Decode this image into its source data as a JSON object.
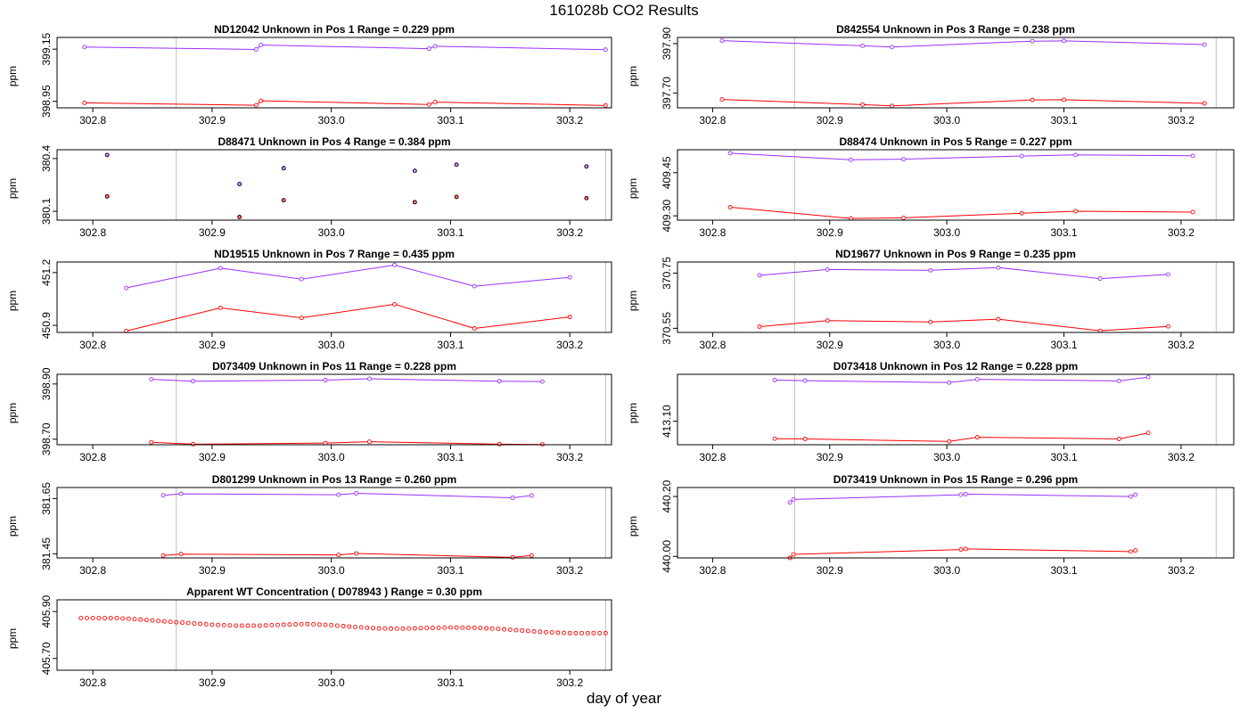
{
  "figure": {
    "title": "161028b  CO2 Results",
    "xlabel": "day of year"
  },
  "colors": {
    "upper": "#9b30ff",
    "lower": "#ff0000",
    "frame": "#000000",
    "vline": "#bebebe"
  },
  "chart_data": [
    {
      "type": "line",
      "panel_id": "pos1",
      "title": "ND12042    Unknown in Pos 1         Range =  0.229 ppm",
      "ylabel": "ppm",
      "xlim": [
        302.77,
        303.235
      ],
      "ylim": [
        398.925,
        399.195
      ],
      "xticks": [
        "302.8",
        "302.9",
        "303.0",
        "303.1",
        "303.2"
      ],
      "yticks": [
        "398.95",
        "399.15"
      ],
      "vlines": [
        302.87,
        303.235
      ],
      "series": [
        {
          "name": "upper",
          "x": [
            302.793,
            302.937,
            302.941,
            303.082,
            303.087,
            303.23
          ],
          "y": [
            399.158,
            399.149,
            399.166,
            399.152,
            399.161,
            399.148
          ]
        },
        {
          "name": "lower",
          "x": [
            302.793,
            302.937,
            302.941,
            303.082,
            303.087,
            303.23
          ],
          "y": [
            398.944,
            398.935,
            398.952,
            398.938,
            398.947,
            398.934
          ]
        }
      ]
    },
    {
      "type": "line",
      "panel_id": "pos3",
      "title": "D842554    Unknown in Pos 3         Range =  0.238 ppm",
      "ylabel": "ppm",
      "xlim": [
        302.77,
        303.245
      ],
      "ylim": [
        397.64,
        397.925
      ],
      "xticks": [
        "302.8",
        "302.9",
        "303.0",
        "303.1",
        "303.2"
      ],
      "yticks": [
        "397.70",
        "397.90"
      ],
      "vlines": [
        302.87,
        303.23
      ],
      "series": [
        {
          "name": "upper",
          "x": [
            302.808,
            302.928,
            302.953,
            303.073,
            303.1,
            303.22
          ],
          "y": [
            397.912,
            397.891,
            397.886,
            397.91,
            397.911,
            397.896
          ]
        },
        {
          "name": "lower",
          "x": [
            302.808,
            302.928,
            302.953,
            303.073,
            303.1,
            303.22
          ],
          "y": [
            397.674,
            397.653,
            397.648,
            397.672,
            397.673,
            397.658
          ]
        }
      ]
    },
    {
      "type": "scatter",
      "panel_id": "pos4",
      "title": "D88471    Unknown in Pos 4         Range =  0.384 ppm",
      "ylabel": "ppm",
      "xlim": [
        302.77,
        303.235
      ],
      "ylim": [
        380.05,
        380.45
      ],
      "xticks": [
        "302.8",
        "302.9",
        "303.0",
        "303.1",
        "303.2"
      ],
      "yticks": [
        "380.1",
        "380.4"
      ],
      "vlines": [
        302.87,
        303.23
      ],
      "series": [
        {
          "name": "upper",
          "x": [
            302.812,
            302.923,
            302.96,
            303.07,
            303.105,
            303.214
          ],
          "y": [
            380.42,
            380.255,
            380.345,
            380.33,
            380.365,
            380.355
          ]
        },
        {
          "name": "lower",
          "x": [
            302.812,
            302.923,
            302.96,
            303.07,
            303.105,
            303.214
          ],
          "y": [
            380.185,
            380.068,
            380.163,
            380.152,
            380.182,
            380.175
          ]
        }
      ]
    },
    {
      "type": "line",
      "panel_id": "pos5",
      "title": "D88474    Unknown in Pos 5         Range =  0.227 ppm",
      "ylabel": "ppm",
      "xlim": [
        302.77,
        303.245
      ],
      "ylim": [
        409.285,
        409.53
      ],
      "xticks": [
        "302.8",
        "302.9",
        "303.0",
        "303.1",
        "303.2"
      ],
      "yticks": [
        "409.30",
        "409.45"
      ],
      "vlines": [
        302.87,
        303.23
      ],
      "series": [
        {
          "name": "upper",
          "x": [
            302.815,
            302.918,
            302.963,
            303.064,
            303.11,
            303.21
          ],
          "y": [
            409.518,
            409.495,
            409.497,
            409.508,
            409.512,
            409.509
          ]
        },
        {
          "name": "lower",
          "x": [
            302.815,
            302.918,
            302.963,
            303.064,
            303.11,
            303.21
          ],
          "y": [
            409.33,
            409.291,
            409.293,
            409.309,
            409.316,
            409.313
          ]
        }
      ]
    },
    {
      "type": "line",
      "panel_id": "pos7",
      "title": "ND19515    Unknown in Pos 7         Range =  0.435 ppm",
      "ylabel": "ppm",
      "xlim": [
        302.77,
        303.235
      ],
      "ylim": [
        450.86,
        451.26
      ],
      "xticks": [
        "302.8",
        "302.9",
        "303.0",
        "303.1",
        "303.2"
      ],
      "yticks": [
        "450.9",
        "451.2"
      ],
      "vlines": [
        302.87,
        303.23
      ],
      "series": [
        {
          "name": "upper",
          "x": [
            302.828,
            302.907,
            302.975,
            303.053,
            303.12,
            303.2
          ],
          "y": [
            451.113,
            451.225,
            451.163,
            451.243,
            451.123,
            451.173
          ]
        },
        {
          "name": "lower",
          "x": [
            302.828,
            302.907,
            302.975,
            303.053,
            303.12,
            303.2
          ],
          "y": [
            450.868,
            451.0,
            450.943,
            451.02,
            450.883,
            450.948
          ]
        }
      ]
    },
    {
      "type": "line",
      "panel_id": "pos9",
      "title": "ND19677    Unknown in Pos 9         Range =  0.235 ppm",
      "ylabel": "ppm",
      "xlim": [
        302.77,
        303.245
      ],
      "ylim": [
        370.535,
        370.79
      ],
      "xticks": [
        "302.8",
        "302.9",
        "303.0",
        "303.1",
        "303.2"
      ],
      "yticks": [
        "370.55",
        "370.75"
      ],
      "vlines": [
        302.87,
        303.23
      ],
      "series": [
        {
          "name": "upper",
          "x": [
            302.84,
            302.898,
            302.986,
            303.044,
            303.131,
            303.189
          ],
          "y": [
            370.742,
            370.763,
            370.76,
            370.77,
            370.73,
            370.745
          ]
        },
        {
          "name": "lower",
          "x": [
            302.84,
            302.898,
            302.986,
            303.044,
            303.131,
            303.189
          ],
          "y": [
            370.556,
            370.578,
            370.573,
            370.583,
            370.541,
            370.557
          ]
        }
      ]
    },
    {
      "type": "line",
      "panel_id": "pos11",
      "title": "D073409    Unknown in Pos 11         Range =  0.228 ppm",
      "ylabel": "ppm",
      "xlim": [
        302.77,
        303.235
      ],
      "ylim": [
        398.68,
        398.935
      ],
      "xticks": [
        "302.8",
        "302.9",
        "303.0",
        "303.1",
        "303.2"
      ],
      "yticks": [
        "398.70",
        "398.90"
      ],
      "vlines": [
        302.87,
        303.23
      ],
      "series": [
        {
          "name": "upper",
          "x": [
            302.849,
            302.884,
            302.995,
            303.032,
            303.141,
            303.177
          ],
          "y": [
            398.917,
            398.91,
            398.914,
            398.919,
            398.91,
            398.909
          ]
        },
        {
          "name": "lower",
          "x": [
            302.849,
            302.884,
            302.995,
            303.032,
            303.141,
            303.177
          ],
          "y": [
            398.689,
            398.682,
            398.686,
            398.691,
            398.682,
            398.681
          ]
        }
      ]
    },
    {
      "type": "line",
      "panel_id": "pos12",
      "title": "D073418    Unknown in Pos 12         Range =  0.228 ppm",
      "ylabel": "ppm",
      "xlim": [
        302.77,
        303.245
      ],
      "ylim": [
        413.015,
        413.27
      ],
      "xticks": [
        "302.8",
        "302.9",
        "303.0",
        "303.1",
        "303.2"
      ],
      "yticks": [
        "413.10"
      ],
      "vlines": [
        302.87,
        303.23
      ],
      "series": [
        {
          "name": "upper",
          "x": [
            302.853,
            302.879,
            303.002,
            303.026,
            303.147,
            303.172
          ],
          "y": [
            413.249,
            413.247,
            413.24,
            413.252,
            413.246,
            413.26
          ]
        },
        {
          "name": "lower",
          "x": [
            302.853,
            302.879,
            303.002,
            303.026,
            303.147,
            303.172
          ],
          "y": [
            413.037,
            413.036,
            413.027,
            413.042,
            413.036,
            413.058
          ]
        }
      ]
    },
    {
      "type": "line",
      "panel_id": "pos13",
      "title": "D801299    Unknown in Pos 13         Range =  0.260 ppm",
      "ylabel": "ppm",
      "xlim": [
        302.77,
        303.235
      ],
      "ylim": [
        381.435,
        381.69
      ],
      "xticks": [
        "302.8",
        "302.9",
        "303.0",
        "303.1",
        "303.2"
      ],
      "yticks": [
        "381.45",
        "381.65"
      ],
      "vlines": [
        302.87,
        303.23
      ],
      "series": [
        {
          "name": "upper",
          "x": [
            302.859,
            302.874,
            303.006,
            303.021,
            303.152,
            303.168
          ],
          "y": [
            381.662,
            381.667,
            381.664,
            381.669,
            381.653,
            381.661
          ]
        },
        {
          "name": "lower",
          "x": [
            302.859,
            302.874,
            303.006,
            303.021,
            303.152,
            303.168
          ],
          "y": [
            381.444,
            381.449,
            381.446,
            381.451,
            381.437,
            381.444
          ]
        }
      ]
    },
    {
      "type": "line",
      "panel_id": "pos15",
      "title": "D073419    Unknown in Pos 15         Range =  0.296 ppm",
      "ylabel": "ppm",
      "xlim": [
        302.77,
        303.245
      ],
      "ylim": [
        439.995,
        440.23
      ],
      "xticks": [
        "302.8",
        "302.9",
        "303.0",
        "303.1",
        "303.2"
      ],
      "yticks": [
        "440.00",
        "440.20"
      ],
      "vlines": [
        302.87,
        303.23
      ],
      "series": [
        {
          "name": "upper",
          "x": [
            302.866,
            302.869,
            303.012,
            303.016,
            303.157,
            303.161
          ],
          "y": [
            440.18,
            440.19,
            440.206,
            440.208,
            440.2,
            440.206
          ]
        },
        {
          "name": "lower",
          "x": [
            302.866,
            302.869,
            303.012,
            303.016,
            303.157,
            303.161
          ],
          "y": [
            439.995,
            440.007,
            440.023,
            440.025,
            440.016,
            440.02
          ]
        }
      ]
    },
    {
      "type": "scatter",
      "panel_id": "wt",
      "title": "Apparent WT Concentration ( D078943 )         Range = 0.30 ppm",
      "ylabel": "ppm",
      "xlim": [
        302.77,
        303.235
      ],
      "ylim": [
        405.65,
        405.95
      ],
      "xticks": [
        "302.8",
        "302.9",
        "303.0",
        "303.1",
        "303.2"
      ],
      "yticks": [
        "405.70",
        "405.90"
      ],
      "vlines": [
        302.87,
        303.23
      ],
      "series": [
        {
          "name": "wt",
          "x_start": 302.79,
          "x_end": 303.23,
          "x_step": 0.005,
          "trend": [
            [
              302.79,
              405.872
            ],
            [
              302.82,
              405.872
            ],
            [
              302.84,
              405.866
            ],
            [
              302.86,
              405.858
            ],
            [
              302.88,
              405.851
            ],
            [
              302.9,
              405.844
            ],
            [
              302.92,
              405.84
            ],
            [
              302.94,
              405.84
            ],
            [
              302.96,
              405.844
            ],
            [
              302.98,
              405.847
            ],
            [
              303.0,
              405.842
            ],
            [
              303.02,
              405.834
            ],
            [
              303.04,
              405.828
            ],
            [
              303.06,
              405.827
            ],
            [
              303.08,
              405.83
            ],
            [
              303.1,
              405.832
            ],
            [
              303.12,
              405.831
            ],
            [
              303.14,
              405.826
            ],
            [
              303.16,
              405.819
            ],
            [
              303.18,
              405.812
            ],
            [
              303.2,
              405.808
            ],
            [
              303.23,
              405.808
            ]
          ]
        }
      ]
    }
  ]
}
